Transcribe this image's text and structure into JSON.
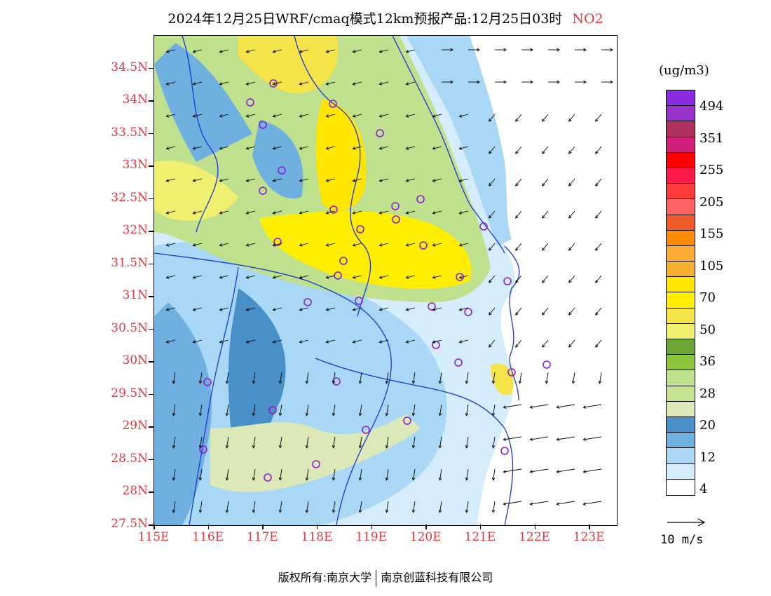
{
  "title": {
    "main": "2024年12月25日WRF/cmaq模式12km预报产品:12月25日03时",
    "species": "NO2"
  },
  "axes": {
    "lat_labels": [
      "34.5N",
      "34N",
      "33.5N",
      "33N",
      "32.5N",
      "32N",
      "31.5N",
      "31N",
      "30.5N",
      "30N",
      "29.5N",
      "29N",
      "28.5N",
      "28N",
      "27.5N"
    ],
    "lon_labels": [
      "115E",
      "116E",
      "117E",
      "118E",
      "119E",
      "120E",
      "121E",
      "122E",
      "123E"
    ],
    "lat_range": [
      27.5,
      35.0
    ],
    "lon_range": [
      115.0,
      123.5
    ]
  },
  "colorbar": {
    "unit": "(ug/m3)",
    "labels": [
      "494",
      "351",
      "255",
      "205",
      "155",
      "105",
      "70",
      "50",
      "36",
      "28",
      "20",
      "12",
      "4"
    ],
    "colors": [
      "#8a2be2",
      "#9932cc",
      "#b03060",
      "#d0207a",
      "#ff0000",
      "#ff1a4b",
      "#ff3b3b",
      "#ff6464",
      "#f05a28",
      "#ff8c00",
      "#ffaa33",
      "#f5b030",
      "#ffe600",
      "#ffee00",
      "#f5e34a",
      "#f0f070",
      "#6ca535",
      "#8cc43c",
      "#bfe08c",
      "#c6e391",
      "#dde8b8",
      "#4a90c8",
      "#6fb0e0",
      "#a8d8f5",
      "#d4ecfb",
      "#ffffff"
    ]
  },
  "wind_reference": {
    "label": "10 m/s"
  },
  "footer": {
    "copyright": "版权所有:南京大学",
    "company": "南京创蓝科技有限公司"
  }
}
